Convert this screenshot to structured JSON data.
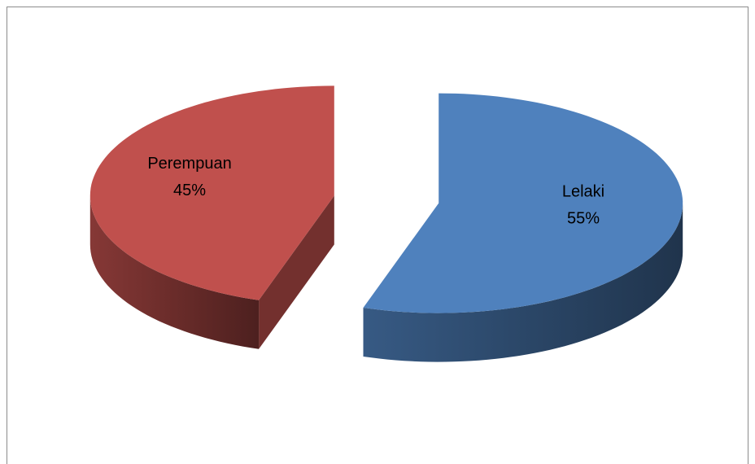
{
  "chart_data": {
    "type": "pie3d",
    "categories": [
      "Lelaki",
      "Perempuan"
    ],
    "values": [
      55,
      45
    ],
    "value_labels": [
      "55%",
      "45%"
    ],
    "colors": [
      "#4f81bd",
      "#c0504d"
    ]
  }
}
